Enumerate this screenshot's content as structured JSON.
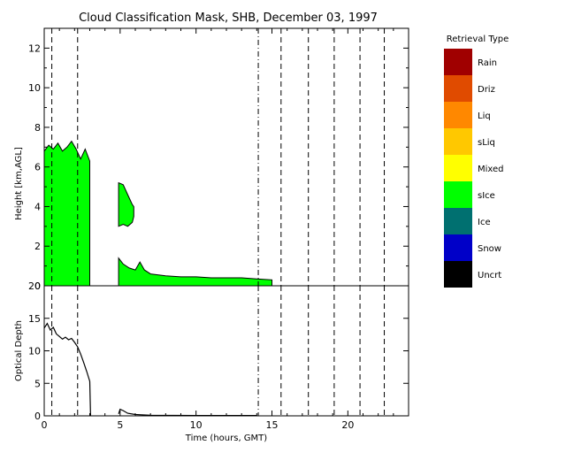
{
  "chart_data": [
    {
      "type": "area",
      "title": "Cloud Classification Mask, SHB, December 03, 1997",
      "ylabel": "Height [km,AGL]",
      "xlim": [
        0,
        24
      ],
      "ylim": [
        0,
        13
      ],
      "y_ticks": [
        "0",
        "2",
        "4",
        "6",
        "8",
        "10",
        "12"
      ],
      "vertical_lines_dashed": [
        0.5,
        2.2,
        15.6,
        17.4,
        19.1,
        20.8,
        22.4
      ],
      "vertical_lines_dashdot": [
        14.1
      ],
      "legend": {
        "title": "Retrieval Type",
        "placement": "right",
        "items": [
          {
            "label": "Rain",
            "color": "#a00000"
          },
          {
            "label": "Driz",
            "color": "#e04b00"
          },
          {
            "label": "Liq",
            "color": "#ff8800"
          },
          {
            "label": "sLiq",
            "color": "#ffc800"
          },
          {
            "label": "Mixed",
            "color": "#ffff00"
          },
          {
            "label": "sIce",
            "color": "#00ff00"
          },
          {
            "label": "Ice",
            "color": "#007070"
          },
          {
            "label": "Snow",
            "color": "#0000c8"
          },
          {
            "label": "Uncrt",
            "color": "#000000"
          }
        ]
      },
      "series": [
        {
          "category": "sIce",
          "color": "#00ff00",
          "segments": [
            {
              "x": [
                0,
                0.3,
                0.6,
                0.9,
                1.2,
                1.5,
                1.8,
                2.1,
                2.4,
                2.7,
                3.0
              ],
              "top": [
                6.8,
                7.1,
                6.9,
                7.2,
                6.8,
                7.0,
                7.3,
                6.9,
                6.4,
                6.9,
                6.3
              ],
              "bottom": [
                0,
                0,
                0,
                0,
                0,
                0,
                0,
                0,
                0,
                0,
                0
              ]
            },
            {
              "x": [
                4.9,
                5.2,
                5.5,
                5.8,
                5.9
              ],
              "top": [
                5.2,
                5.1,
                4.6,
                4.1,
                4.0
              ],
              "bottom": [
                3.0,
                3.1,
                3.0,
                3.2,
                3.5
              ]
            },
            {
              "x": [
                4.9,
                5.2,
                5.6,
                6.0,
                6.3,
                6.6,
                7.0,
                8.0,
                9.0,
                10.0,
                11.0,
                12.0,
                13.0,
                14.0,
                15.0
              ],
              "top": [
                1.4,
                1.1,
                0.9,
                0.8,
                1.2,
                0.8,
                0.6,
                0.5,
                0.45,
                0.45,
                0.4,
                0.4,
                0.4,
                0.35,
                0.3
              ],
              "bottom": [
                0,
                0,
                0,
                0,
                0,
                0,
                0,
                0,
                0,
                0,
                0,
                0,
                0,
                0,
                0
              ]
            }
          ]
        }
      ]
    },
    {
      "type": "line",
      "xlabel": "Time (hours, GMT)",
      "ylabel": "Optical Depth",
      "xlim": [
        0,
        24
      ],
      "ylim": [
        0,
        20
      ],
      "x_ticks": [
        "0",
        "5",
        "10",
        "15",
        "20"
      ],
      "y_ticks": [
        "0",
        "5",
        "10",
        "15",
        "20"
      ],
      "vertical_lines_dashed": [
        0.5,
        2.2,
        15.6,
        17.4,
        19.1,
        20.8,
        22.4
      ],
      "vertical_lines_dashdot": [
        14.1
      ],
      "series": [
        {
          "x": [
            0,
            0.2,
            0.4,
            0.6,
            0.8,
            1.0,
            1.2,
            1.4,
            1.6,
            1.8,
            2.0,
            2.2,
            2.4,
            2.6,
            2.8,
            3.0,
            3.05
          ],
          "y": [
            13.5,
            14.2,
            13.2,
            13.6,
            12.6,
            12.2,
            11.8,
            12.1,
            11.7,
            11.9,
            11.3,
            10.6,
            9.5,
            8.2,
            6.8,
            5.3,
            0
          ]
        },
        {
          "x": [
            4.9,
            5.0,
            5.2,
            5.5,
            6.0,
            7.0,
            10.0,
            14.0
          ],
          "y": [
            0.3,
            1.0,
            0.8,
            0.4,
            0.2,
            0.1,
            0.05,
            0.05
          ]
        }
      ]
    }
  ]
}
